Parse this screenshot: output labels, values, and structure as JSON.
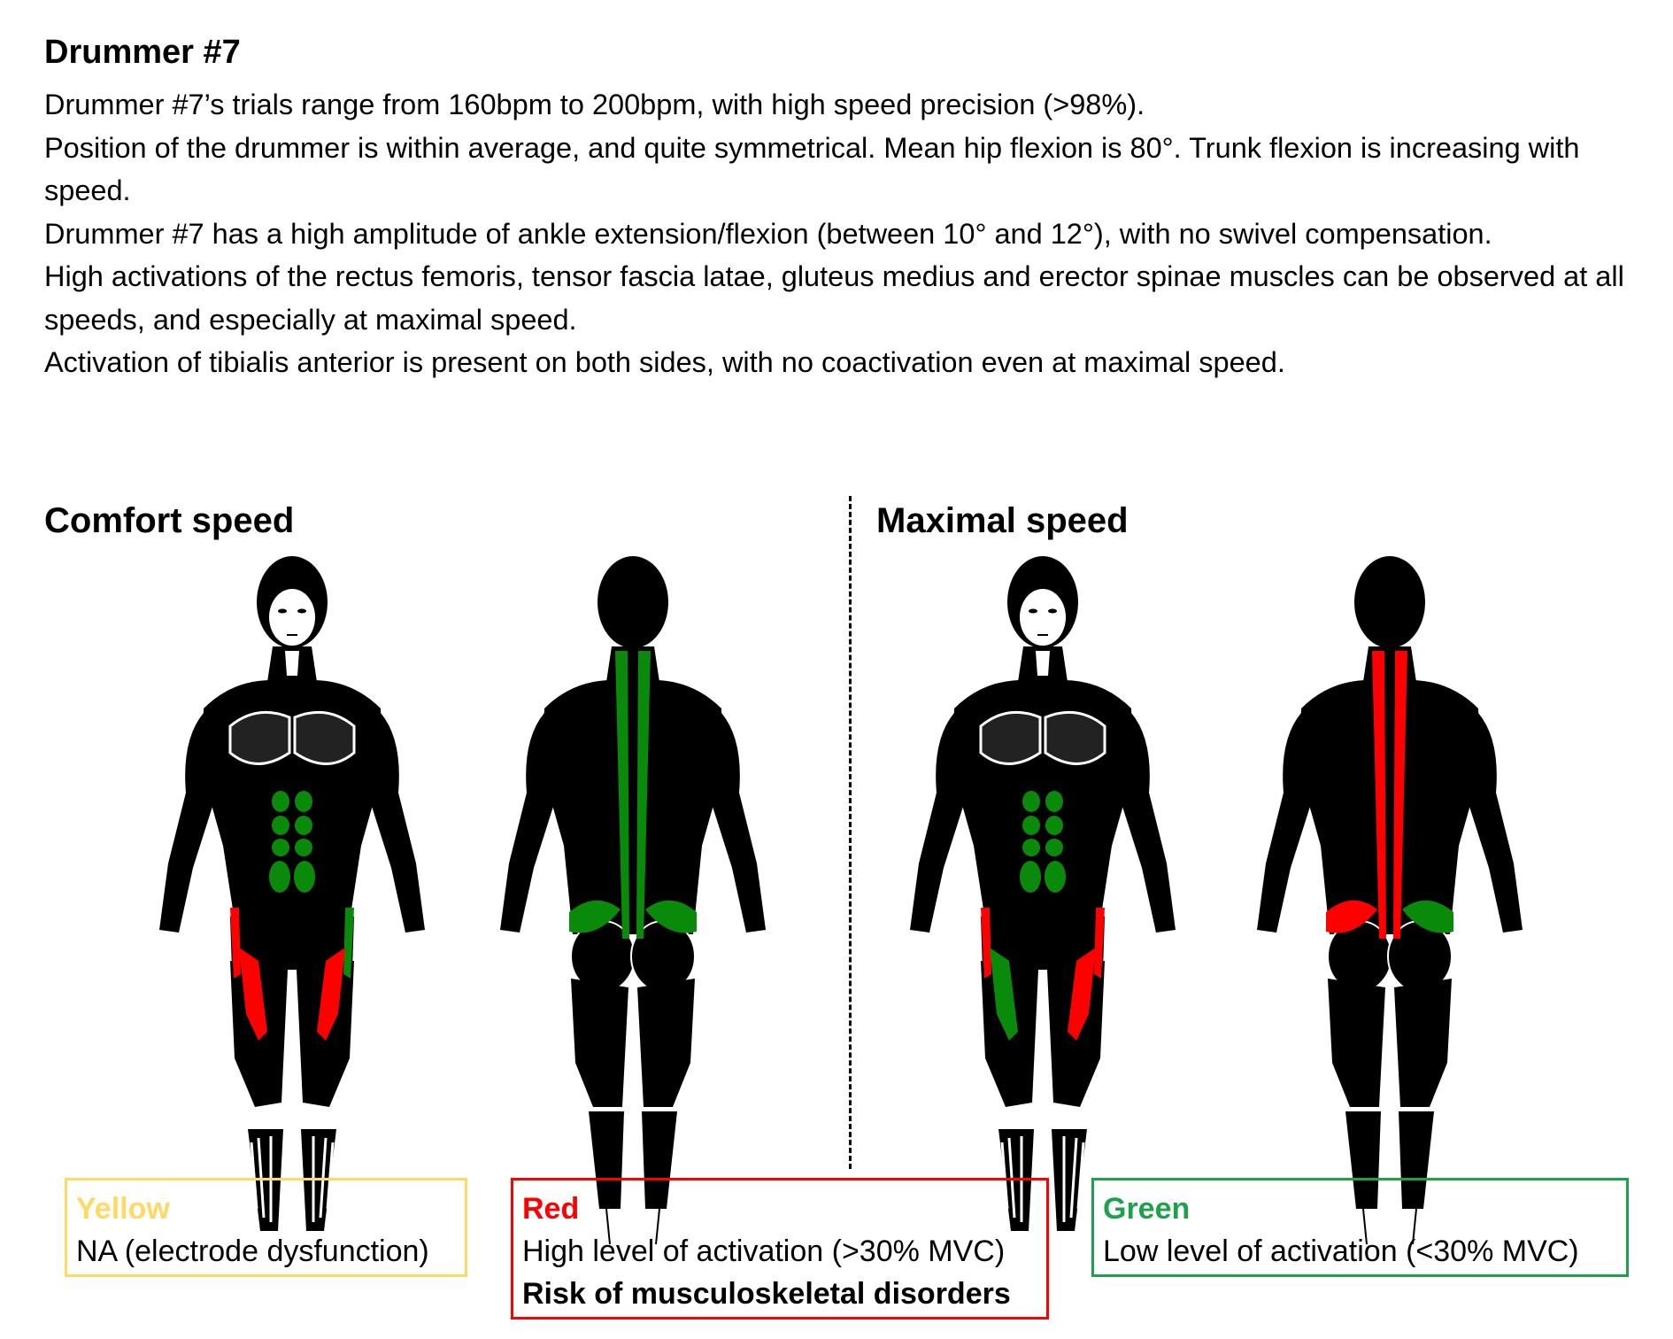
{
  "title": "Drummer #7",
  "description": [
    "Drummer #7’s trials range from 160bpm to 200bpm, with high speed precision (>98%).",
    "Position of the drummer is within average, and quite symmetrical. Mean hip flexion is 80°.  Trunk flexion is increasing with speed.",
    "Drummer #7 has a high amplitude of ankle extension/flexion (between 10° and 12°), with no swivel compensation.",
    "High activations of the rectus femoris, tensor fascia latae, gluteus medius and erector spinae muscles can be observed at all speeds, and especially at maximal speed.",
    "Activation of tibialis anterior is present on both sides, with no coactivation even at maximal speed."
  ],
  "sections": {
    "comfort": {
      "title": "Comfort speed",
      "front": {
        "abdominals": "green",
        "tfl_left": "red",
        "tfl_right": "green",
        "rf_left": "red",
        "rf_right": "red"
      },
      "back": {
        "erector_spinae": "green",
        "glute_left": "green",
        "glute_right": "green"
      }
    },
    "maximal": {
      "title": "Maximal speed",
      "front": {
        "abdominals": "green",
        "tfl_left": "red",
        "tfl_right": "red",
        "rf_left": "green",
        "rf_right": "red"
      },
      "back": {
        "erector_spinae": "red",
        "glute_left": "red",
        "glute_right": "green"
      }
    }
  },
  "legend": {
    "yellow": {
      "label": "Yellow",
      "text": "NA (electrode dysfunction)"
    },
    "red": {
      "label": "Red",
      "text": "High level of activation (>30% MVC)",
      "risk": "Risk of musculoskeletal disorders"
    },
    "green": {
      "label": "Green",
      "text": "Low level of activation (<30% MVC)"
    }
  },
  "colors": {
    "red": "#ff0000",
    "green": "#0a8a0a",
    "yellow": "#ffd966",
    "body": "#000000"
  }
}
